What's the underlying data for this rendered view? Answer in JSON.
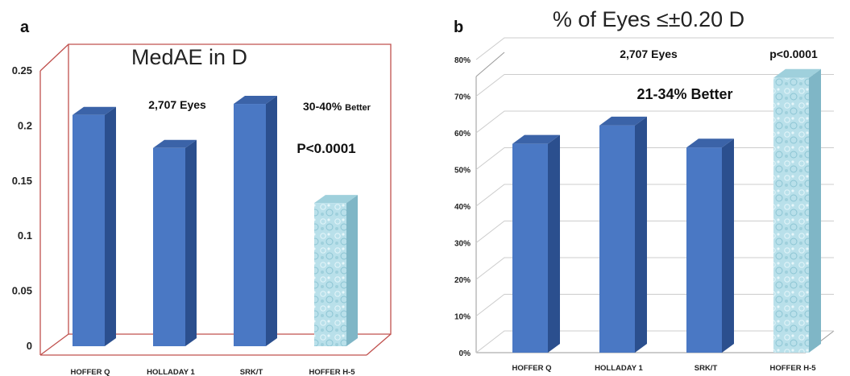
{
  "chart_data": [
    {
      "panel": "a",
      "type": "bar",
      "title": "MedAE in D",
      "categories": [
        "HOFFER Q",
        "HOLLADAY 1",
        "SRK/T",
        "HOFFER H-5"
      ],
      "values": [
        0.21,
        0.18,
        0.22,
        0.13
      ],
      "ylim": [
        0,
        0.25
      ],
      "yticks": [
        "0",
        "0.05",
        "0.1",
        "0.15",
        "0.2",
        "0.25"
      ],
      "annotations": [
        "2,707 Eyes",
        "30-40% Better",
        "P<0.0001"
      ],
      "grid": false
    },
    {
      "panel": "b",
      "type": "bar",
      "title": "% of Eyes ≤±0.20 D",
      "categories": [
        "HOFFER Q",
        "HOLLADAY 1",
        "SRK/T",
        "HOFFER H-5"
      ],
      "values": [
        57,
        62,
        56,
        75
      ],
      "ylim": [
        0,
        80
      ],
      "yticks": [
        "0%",
        "10%",
        "20%",
        "30%",
        "40%",
        "50%",
        "60%",
        "70%",
        "80%"
      ],
      "annotations": [
        "2,707 Eyes",
        "p<0.0001",
        "21-34% Better"
      ],
      "grid": true
    }
  ],
  "colors": {
    "bar_front": "#4a78c4",
    "bar_side": "#2b4f8e",
    "bar_top": "#3b63a8",
    "highlight_bar": "#b9e0ea",
    "frame_a": "#c0504d",
    "grid_b": "#cccccc"
  }
}
